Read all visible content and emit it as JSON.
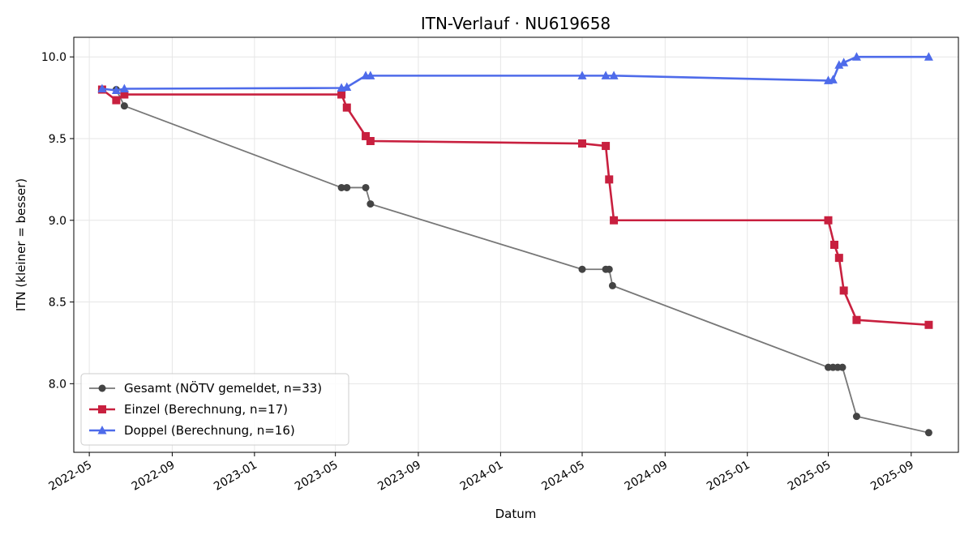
{
  "chart_data": {
    "type": "line",
    "title": "ITN-Verlauf · NU619658",
    "xlabel": "Datum",
    "ylabel": "ITN  (kleiner = besser)",
    "x_type": "date",
    "xlim": [
      "2022-04-08",
      "2025-11-10"
    ],
    "ylim": [
      7.58,
      10.12
    ],
    "x_ticks": [
      "2022-05",
      "2022-09",
      "2023-01",
      "2023-05",
      "2023-09",
      "2024-01",
      "2024-05",
      "2024-09",
      "2025-01",
      "2025-05",
      "2025-09"
    ],
    "y_ticks": [
      8.0,
      8.5,
      9.0,
      9.5,
      10.0
    ],
    "grid": true,
    "legend_position": "bottom-left",
    "series": [
      {
        "name": "Gesamt (NÖTV gemeldet, n=33)",
        "color": "#777777",
        "marker_color": "#444444",
        "marker": "circle",
        "points": [
          {
            "x": "2022-05-20",
            "y": 9.8
          },
          {
            "x": "2022-06-10",
            "y": 9.8
          },
          {
            "x": "2022-06-22",
            "y": 9.7
          },
          {
            "x": "2023-05-10",
            "y": 9.2
          },
          {
            "x": "2023-05-18",
            "y": 9.2
          },
          {
            "x": "2023-06-15",
            "y": 9.2
          },
          {
            "x": "2023-06-22",
            "y": 9.1
          },
          {
            "x": "2024-05-01",
            "y": 8.7
          },
          {
            "x": "2024-06-05",
            "y": 8.7
          },
          {
            "x": "2024-06-10",
            "y": 8.7
          },
          {
            "x": "2024-06-15",
            "y": 8.6
          },
          {
            "x": "2025-05-01",
            "y": 8.1
          },
          {
            "x": "2025-05-08",
            "y": 8.1
          },
          {
            "x": "2025-05-15",
            "y": 8.1
          },
          {
            "x": "2025-05-22",
            "y": 8.1
          },
          {
            "x": "2025-06-12",
            "y": 7.8
          },
          {
            "x": "2025-09-27",
            "y": 7.7
          }
        ]
      },
      {
        "name": "Einzel (Berechnung, n=17)",
        "color": "#c8203f",
        "marker_color": "#c8203f",
        "marker": "square",
        "points": [
          {
            "x": "2022-05-20",
            "y": 9.8
          },
          {
            "x": "2022-06-10",
            "y": 9.735
          },
          {
            "x": "2022-06-22",
            "y": 9.77
          },
          {
            "x": "2023-05-10",
            "y": 9.77
          },
          {
            "x": "2023-05-18",
            "y": 9.69
          },
          {
            "x": "2023-06-15",
            "y": 9.515
          },
          {
            "x": "2023-06-22",
            "y": 9.485
          },
          {
            "x": "2024-05-01",
            "y": 9.47
          },
          {
            "x": "2024-06-05",
            "y": 9.455
          },
          {
            "x": "2024-06-10",
            "y": 9.25
          },
          {
            "x": "2024-06-17",
            "y": 9.0
          },
          {
            "x": "2025-05-01",
            "y": 9.0
          },
          {
            "x": "2025-05-10",
            "y": 8.85
          },
          {
            "x": "2025-05-17",
            "y": 8.77
          },
          {
            "x": "2025-05-24",
            "y": 8.57
          },
          {
            "x": "2025-06-12",
            "y": 8.39
          },
          {
            "x": "2025-09-27",
            "y": 8.36
          }
        ]
      },
      {
        "name": "Doppel (Berechnung, n=16)",
        "color": "#4e6bea",
        "marker_color": "#4e6bea",
        "marker": "triangle",
        "points": [
          {
            "x": "2022-05-20",
            "y": 9.805
          },
          {
            "x": "2022-06-10",
            "y": 9.795
          },
          {
            "x": "2022-06-22",
            "y": 9.805
          },
          {
            "x": "2023-05-10",
            "y": 9.81
          },
          {
            "x": "2023-05-18",
            "y": 9.815
          },
          {
            "x": "2023-06-15",
            "y": 9.885
          },
          {
            "x": "2023-06-22",
            "y": 9.885
          },
          {
            "x": "2024-05-01",
            "y": 9.885
          },
          {
            "x": "2024-06-05",
            "y": 9.885
          },
          {
            "x": "2024-06-17",
            "y": 9.885
          },
          {
            "x": "2025-05-01",
            "y": 9.855
          },
          {
            "x": "2025-05-08",
            "y": 9.86
          },
          {
            "x": "2025-05-17",
            "y": 9.95
          },
          {
            "x": "2025-05-24",
            "y": 9.965
          },
          {
            "x": "2025-06-12",
            "y": 10.0
          },
          {
            "x": "2025-09-27",
            "y": 10.0
          }
        ]
      }
    ]
  }
}
